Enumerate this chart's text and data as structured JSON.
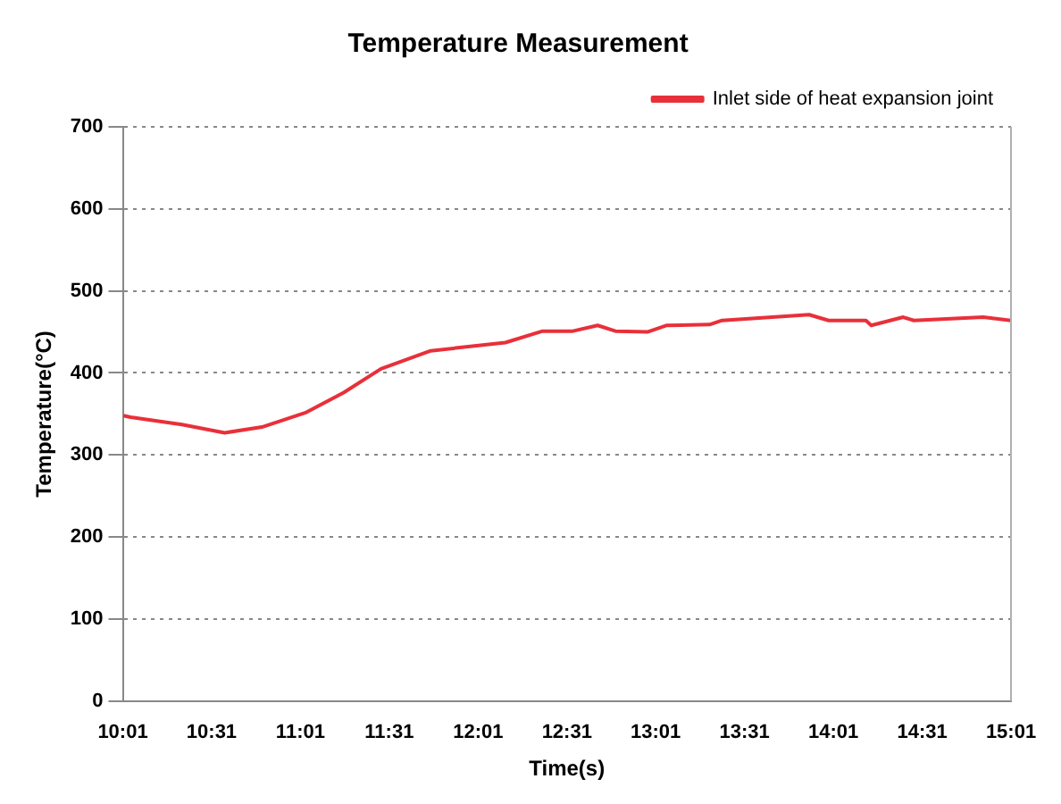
{
  "chart_data": {
    "type": "line",
    "title": "Temperature Measurement",
    "xlabel": "Time(s)",
    "ylabel": "Temperature(°C)",
    "x": [
      10.02,
      10.06,
      10.35,
      10.59,
      10.8,
      11.05,
      11.26,
      11.47,
      11.75,
      12.17,
      12.38,
      12.55,
      12.69,
      12.79,
      12.97,
      13.08,
      13.32,
      13.39,
      13.88,
      13.99,
      14.2,
      14.23,
      14.41,
      14.47,
      14.86,
      15.0167
    ],
    "series": [
      {
        "name": "Inlet side of heat expansion joint",
        "color": "#e8303a",
        "values": [
          348,
          346,
          337,
          327,
          334,
          352,
          376,
          405,
          427,
          437,
          451,
          451,
          458,
          451,
          450,
          458,
          459,
          464,
          471,
          464,
          464,
          458,
          468,
          464,
          468,
          464
        ]
      }
    ],
    "xlim": [
      10.0167,
      15.0167
    ],
    "xticks": [
      {
        "value": 10.0167,
        "label": "10:01"
      },
      {
        "value": 10.5167,
        "label": "10:31"
      },
      {
        "value": 11.0167,
        "label": "11:01"
      },
      {
        "value": 11.5167,
        "label": "11:31"
      },
      {
        "value": 12.0167,
        "label": "12:01"
      },
      {
        "value": 12.5167,
        "label": "12:31"
      },
      {
        "value": 13.0167,
        "label": "13:01"
      },
      {
        "value": 13.5167,
        "label": "13:31"
      },
      {
        "value": 14.0167,
        "label": "14:01"
      },
      {
        "value": 14.5167,
        "label": "14:31"
      },
      {
        "value": 15.0167,
        "label": "15:01"
      }
    ],
    "ylim": [
      0,
      700
    ],
    "yticks": [
      0,
      100,
      200,
      300,
      400,
      500,
      600,
      700
    ],
    "grid": "y",
    "legend": "top right",
    "marker": "none",
    "line_style": "solid"
  }
}
